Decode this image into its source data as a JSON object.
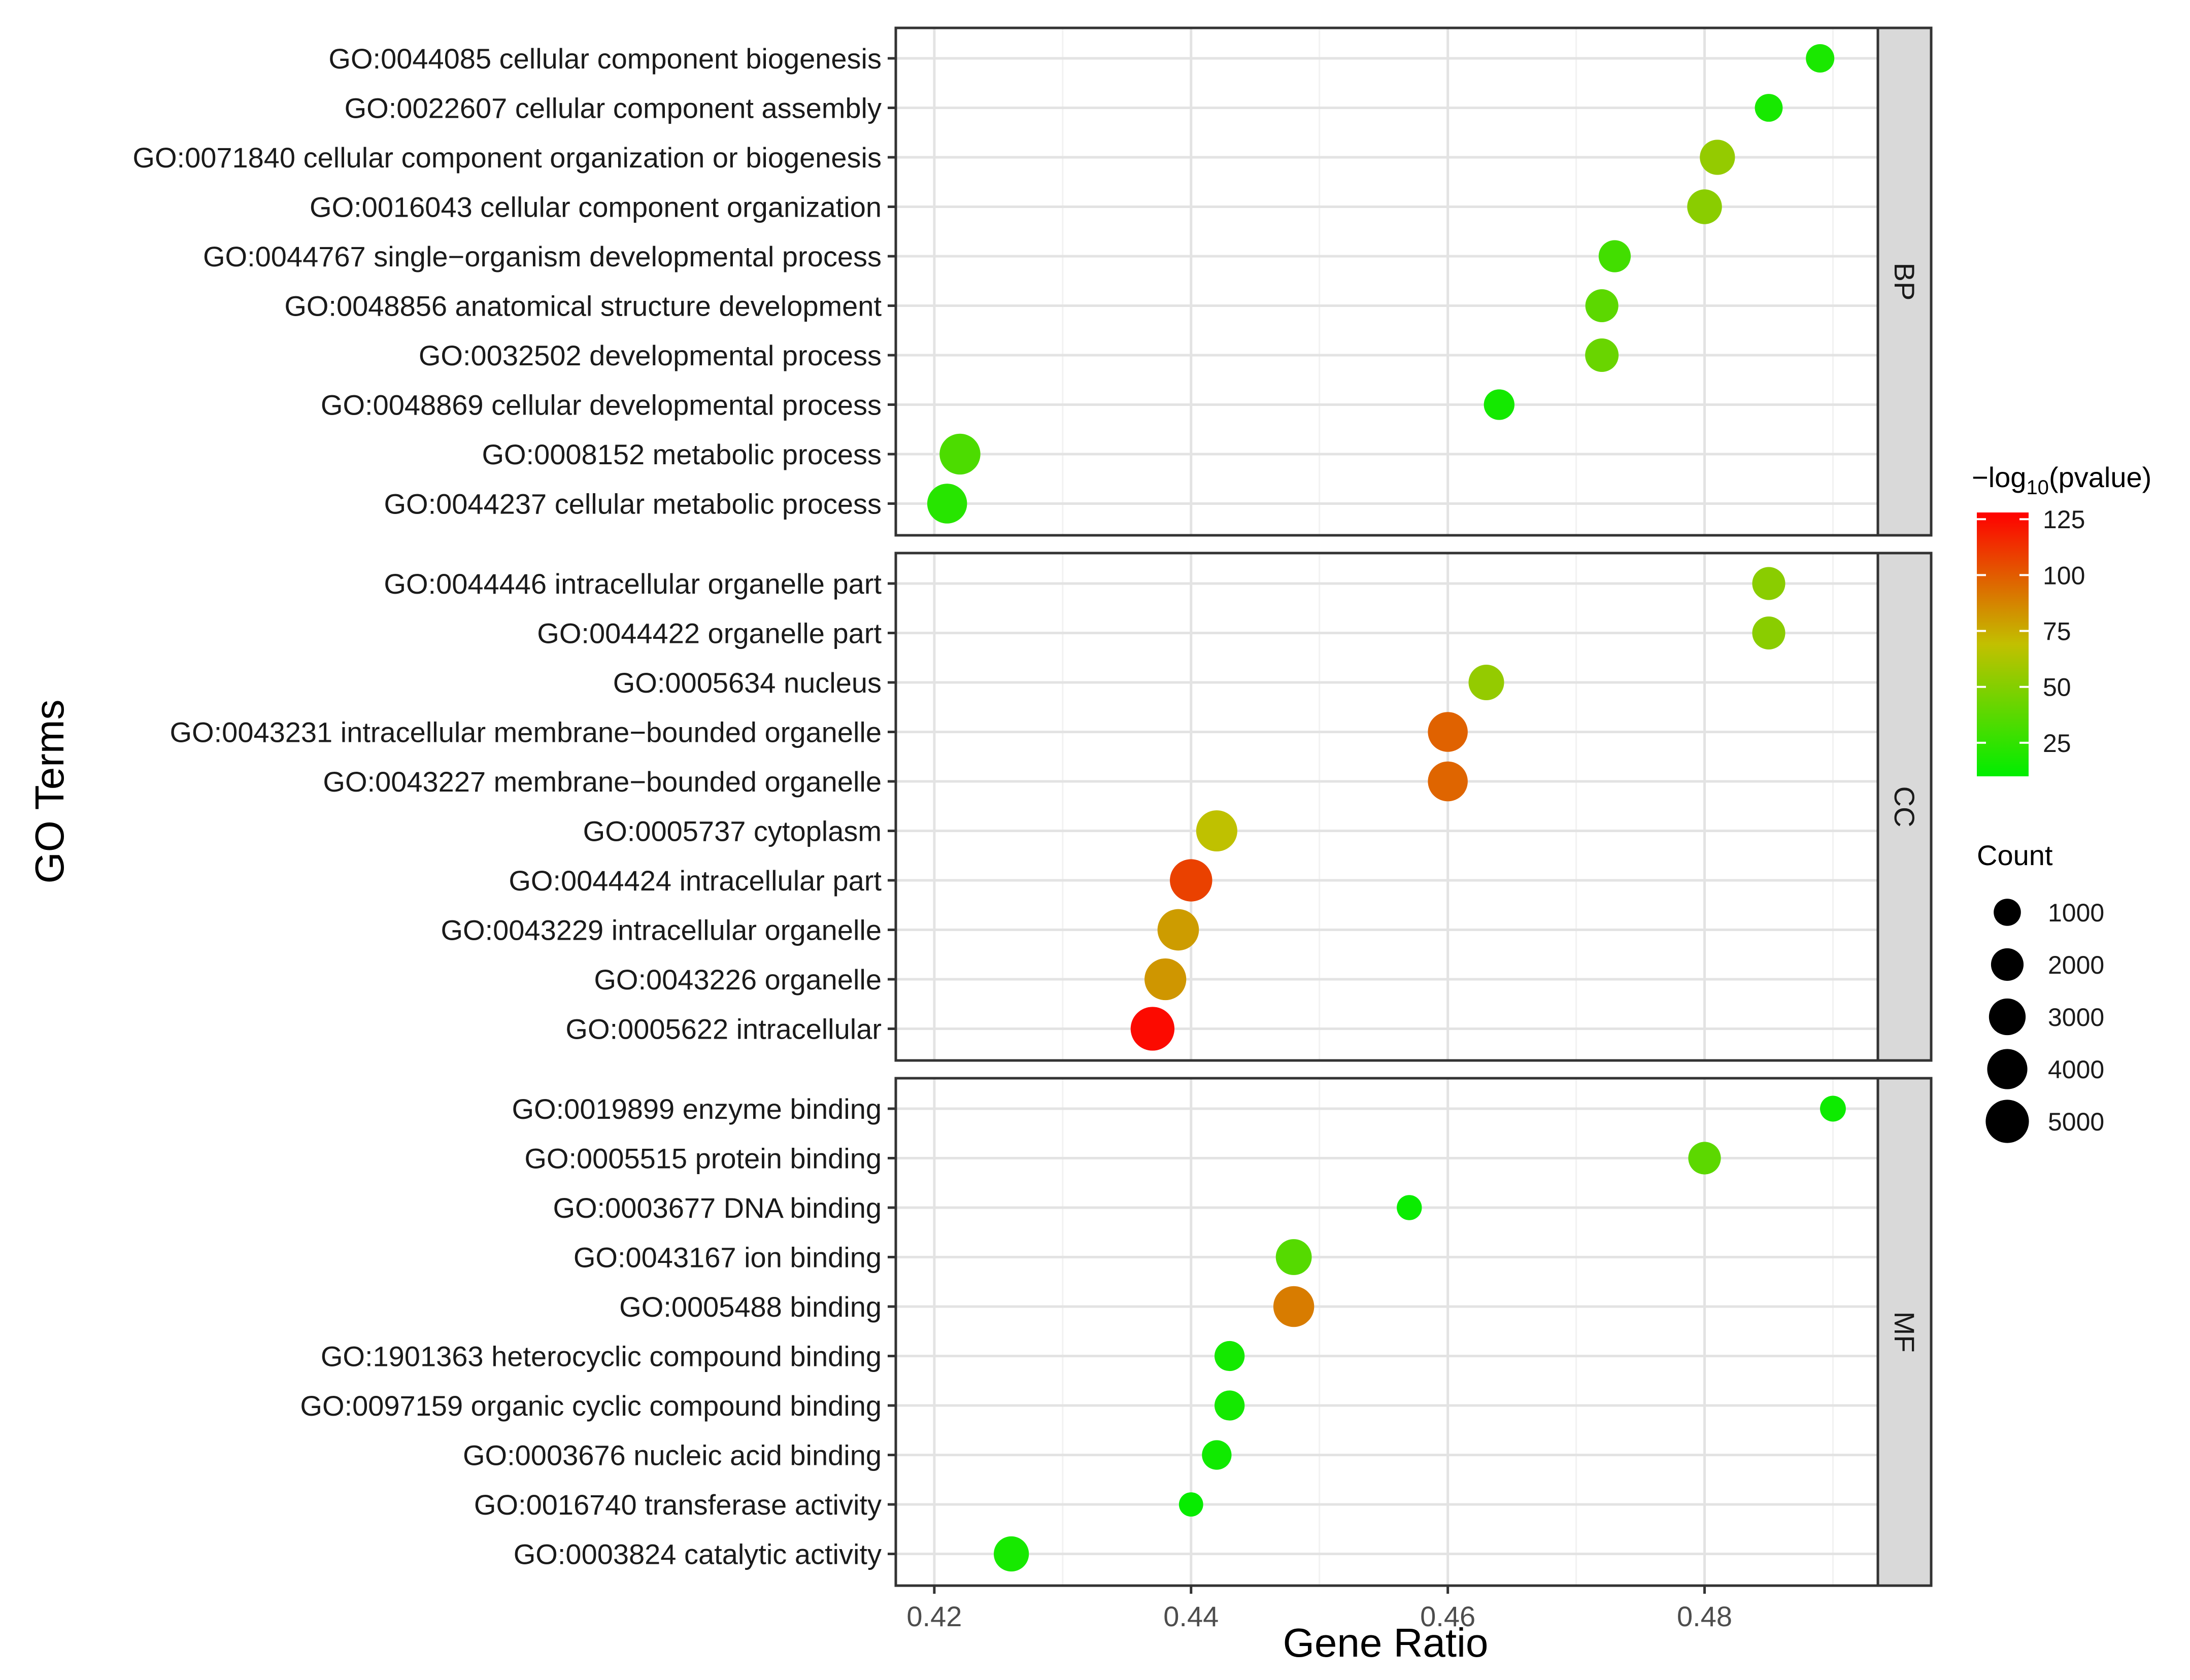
{
  "chart_data": {
    "type": "scatter",
    "subtype": "faceted dot plot",
    "xlabel": "Gene Ratio",
    "ylabel": "GO Terms",
    "xlim": [
      0.417,
      0.4935
    ],
    "x_ticks": [
      0.42,
      0.44,
      0.46,
      0.48
    ],
    "x_tick_labels": [
      "0.42",
      "0.44",
      "0.46",
      "0.48"
    ],
    "grid": true,
    "color_legend": {
      "title_prefix": "−log",
      "title_subscript": "10",
      "title_suffix": "(pvalue)",
      "min": 10,
      "max": 128,
      "ticks": [
        25,
        50,
        75,
        100,
        125
      ],
      "tick_labels": [
        "25",
        "50",
        "75",
        "100",
        "125"
      ],
      "color_low": "#00ee00",
      "color_mid": "#c2c000",
      "color_high": "#ff0000"
    },
    "size_legend": {
      "title": "Count",
      "values": [
        1000,
        2000,
        3000,
        4000,
        5000
      ],
      "labels": [
        "1000",
        "2000",
        "3000",
        "4000",
        "5000"
      ]
    },
    "facets": [
      {
        "label": "BP",
        "terms": [
          {
            "term": "GO:0044085 cellular component biogenesis",
            "gene_ratio": 0.489,
            "neglog10p": 18,
            "count": 1200
          },
          {
            "term": "GO:0022607 cellular component assembly",
            "gene_ratio": 0.485,
            "neglog10p": 17,
            "count": 1100
          },
          {
            "term": "GO:0071840 cellular component organization or biogenesis",
            "gene_ratio": 0.481,
            "neglog10p": 55,
            "count": 2600
          },
          {
            "term": "GO:0016043 cellular component organization",
            "gene_ratio": 0.48,
            "neglog10p": 52,
            "count": 2500
          },
          {
            "term": "GO:0044767 single−organism developmental process",
            "gene_ratio": 0.473,
            "neglog10p": 30,
            "count": 1900
          },
          {
            "term": "GO:0048856 anatomical structure development",
            "gene_ratio": 0.472,
            "neglog10p": 38,
            "count": 2100
          },
          {
            "term": "GO:0032502 developmental process",
            "gene_ratio": 0.472,
            "neglog10p": 42,
            "count": 2200
          },
          {
            "term": "GO:0048869 cellular developmental process",
            "gene_ratio": 0.464,
            "neglog10p": 16,
            "count": 1600
          },
          {
            "term": "GO:0008152 metabolic process",
            "gene_ratio": 0.422,
            "neglog10p": 33,
            "count": 4200
          },
          {
            "term": "GO:0044237 cellular metabolic process",
            "gene_ratio": 0.421,
            "neglog10p": 22,
            "count": 3900
          }
        ]
      },
      {
        "label": "CC",
        "terms": [
          {
            "term": "GO:0044446 intracellular organelle part",
            "gene_ratio": 0.485,
            "neglog10p": 52,
            "count": 2100
          },
          {
            "term": "GO:0044422 organelle part",
            "gene_ratio": 0.485,
            "neglog10p": 52,
            "count": 2100
          },
          {
            "term": "GO:0005634 nucleus",
            "gene_ratio": 0.463,
            "neglog10p": 55,
            "count": 2700
          },
          {
            "term": "GO:0043231 intracellular membrane−bounded organelle",
            "gene_ratio": 0.46,
            "neglog10p": 98,
            "count": 3900
          },
          {
            "term": "GO:0043227 membrane−bounded organelle",
            "gene_ratio": 0.46,
            "neglog10p": 97,
            "count": 3900
          },
          {
            "term": "GO:0005737 cytoplasm",
            "gene_ratio": 0.442,
            "neglog10p": 68,
            "count": 4300
          },
          {
            "term": "GO:0044424 intracellular part",
            "gene_ratio": 0.44,
            "neglog10p": 108,
            "count": 4700
          },
          {
            "term": "GO:0043229 intracellular organelle",
            "gene_ratio": 0.439,
            "neglog10p": 80,
            "count": 4400
          },
          {
            "term": "GO:0043226 organelle",
            "gene_ratio": 0.438,
            "neglog10p": 82,
            "count": 4500
          },
          {
            "term": "GO:0005622 intracellular",
            "gene_ratio": 0.437,
            "neglog10p": 125,
            "count": 5200
          }
        ]
      },
      {
        "label": "MF",
        "terms": [
          {
            "term": "GO:0019899 enzyme binding",
            "gene_ratio": 0.49,
            "neglog10p": 14,
            "count": 800
          },
          {
            "term": "GO:0005515 protein binding",
            "gene_ratio": 0.48,
            "neglog10p": 38,
            "count": 2000
          },
          {
            "term": "GO:0003677 DNA binding",
            "gene_ratio": 0.457,
            "neglog10p": 13,
            "count": 700
          },
          {
            "term": "GO:0043167 ion binding",
            "gene_ratio": 0.448,
            "neglog10p": 36,
            "count": 2800
          },
          {
            "term": "GO:0005488 binding",
            "gene_ratio": 0.448,
            "neglog10p": 90,
            "count": 4200
          },
          {
            "term": "GO:1901363 heterocyclic compound binding",
            "gene_ratio": 0.443,
            "neglog10p": 16,
            "count": 1500
          },
          {
            "term": "GO:0097159 organic cyclic compound binding",
            "gene_ratio": 0.443,
            "neglog10p": 16,
            "count": 1500
          },
          {
            "term": "GO:0003676 nucleic acid binding",
            "gene_ratio": 0.442,
            "neglog10p": 15,
            "count": 1400
          },
          {
            "term": "GO:0016740 transferase activity",
            "gene_ratio": 0.44,
            "neglog10p": 12,
            "count": 600
          },
          {
            "term": "GO:0003824 catalytic activity",
            "gene_ratio": 0.426,
            "neglog10p": 17,
            "count": 2600
          }
        ]
      }
    ]
  }
}
